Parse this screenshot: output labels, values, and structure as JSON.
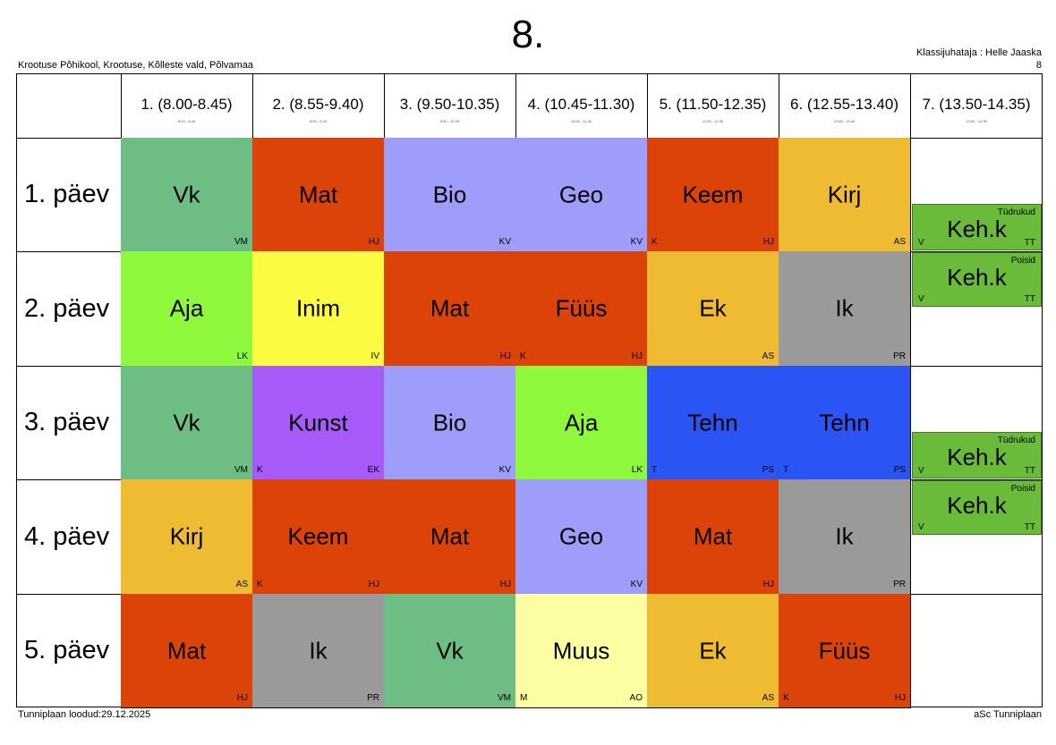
{
  "header": {
    "title": "8.",
    "school": "Krootuse Põhikool, Krootuse, Kõlleste vald, Põlvamaa",
    "teacher": "Klassijuhataja : Helle Jaaska",
    "class_number": "8"
  },
  "periods": [
    {
      "label": "1. (8.00-8.45)",
      "sub": "8:00 - 8:45"
    },
    {
      "label": "2. (8.55-9.40)",
      "sub": "8:55 - 9:40"
    },
    {
      "label": "3. (9.50-10.35)",
      "sub": "9:50 - 10:35"
    },
    {
      "label": "4. (10.45-11.30)",
      "sub": "10:45 - 11:30"
    },
    {
      "label": "5. (11.50-12.35)",
      "sub": "11:50 - 12:35"
    },
    {
      "label": "6. (12.55-13.40)",
      "sub": "12:55 - 13:40"
    },
    {
      "label": "7. (13.50-14.35)",
      "sub": "13:50 - 14:35"
    }
  ],
  "days": [
    "1. päev",
    "2. päev",
    "3. päev",
    "4. päev",
    "5. päev"
  ],
  "lessons": [
    [
      {
        "subject": "Vk",
        "teacher": "VM",
        "room": "",
        "color": "#6dbd85"
      },
      {
        "subject": "Mat",
        "teacher": "HJ",
        "room": "",
        "color": "#dc4308"
      },
      {
        "subject": "Bio",
        "teacher": "KV",
        "room": "",
        "color": "#9e9efa"
      },
      {
        "subject": "Geo",
        "teacher": "KV",
        "room": "",
        "color": "#9e9efa"
      },
      {
        "subject": "Keem",
        "teacher": "HJ",
        "room": "K",
        "color": "#dc4308"
      },
      {
        "subject": "Kirj",
        "teacher": "AS",
        "room": "",
        "color": "#efbb32"
      }
    ],
    [
      {
        "subject": "Aja",
        "teacher": "LK",
        "room": "",
        "color": "#8ef83c"
      },
      {
        "subject": "Inim",
        "teacher": "IV",
        "room": "",
        "color": "#fbfb42"
      },
      {
        "subject": "Mat",
        "teacher": "HJ",
        "room": "",
        "color": "#dc4308"
      },
      {
        "subject": "Füüs",
        "teacher": "HJ",
        "room": "K",
        "color": "#dc4308"
      },
      {
        "subject": "Ek",
        "teacher": "AS",
        "room": "",
        "color": "#efbb32"
      },
      {
        "subject": "Ik",
        "teacher": "PR",
        "room": "",
        "color": "#9a9a9a"
      }
    ],
    [
      {
        "subject": "Vk",
        "teacher": "VM",
        "room": "",
        "color": "#6dbd85"
      },
      {
        "subject": "Kunst",
        "teacher": "EK",
        "room": "K",
        "color": "#a65af8"
      },
      {
        "subject": "Bio",
        "teacher": "KV",
        "room": "",
        "color": "#9e9efa"
      },
      {
        "subject": "Aja",
        "teacher": "LK",
        "room": "",
        "color": "#8ef83c"
      },
      {
        "subject": "Tehn",
        "teacher": "PS",
        "room": "T",
        "color": "#2b54f4"
      },
      {
        "subject": "Tehn",
        "teacher": "PS",
        "room": "T",
        "color": "#2b54f4"
      }
    ],
    [
      {
        "subject": "Kirj",
        "teacher": "AS",
        "room": "",
        "color": "#efbb32"
      },
      {
        "subject": "Keem",
        "teacher": "HJ",
        "room": "K",
        "color": "#dc4308"
      },
      {
        "subject": "Mat",
        "teacher": "HJ",
        "room": "",
        "color": "#dc4308"
      },
      {
        "subject": "Geo",
        "teacher": "KV",
        "room": "",
        "color": "#9e9efa"
      },
      {
        "subject": "Mat",
        "teacher": "HJ",
        "room": "",
        "color": "#dc4308"
      },
      {
        "subject": "Ik",
        "teacher": "PR",
        "room": "",
        "color": "#9a9a9a"
      }
    ],
    [
      {
        "subject": "Mat",
        "teacher": "HJ",
        "room": "",
        "color": "#dc4308"
      },
      {
        "subject": "Ik",
        "teacher": "PR",
        "room": "",
        "color": "#9a9a9a"
      },
      {
        "subject": "Vk",
        "teacher": "VM",
        "room": "",
        "color": "#6dbd85"
      },
      {
        "subject": "Muus",
        "teacher": "AO",
        "room": "M",
        "color": "#fdfda4"
      },
      {
        "subject": "Ek",
        "teacher": "AS",
        "room": "",
        "color": "#efbb32"
      },
      {
        "subject": "Füüs",
        "teacher": "HJ",
        "room": "K",
        "color": "#dc4308"
      }
    ]
  ],
  "period7": [
    {
      "day_index": 0,
      "half": "bottom",
      "group": "Tüdrukud",
      "subject": "Keh.k",
      "room": "V",
      "teacher": "TT"
    },
    {
      "day_index": 1,
      "half": "top",
      "group": "Poisid",
      "subject": "Keh.k",
      "room": "V",
      "teacher": "TT"
    },
    {
      "day_index": 2,
      "half": "bottom",
      "group": "Tüdrukud",
      "subject": "Keh.k",
      "room": "V",
      "teacher": "TT"
    },
    {
      "day_index": 3,
      "half": "top",
      "group": "Poisid",
      "subject": "Keh.k",
      "room": "V",
      "teacher": "TT"
    }
  ],
  "footer": {
    "created": "Tunniplaan loodud:29.12.2025",
    "software": "aSc Tunniplaan"
  }
}
